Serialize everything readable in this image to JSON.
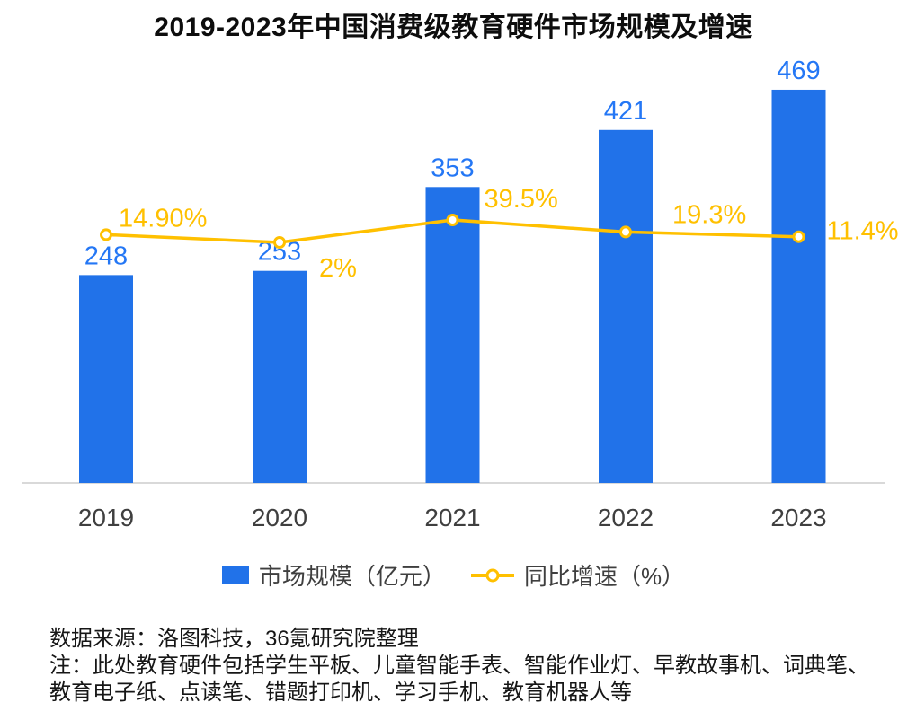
{
  "title": "2019-2023年中国消费级教育硬件市场规模及增速",
  "chart_data": {
    "type": "bar+line combo",
    "title": "2019-2023年中国消费级教育硬件市场规模及增速",
    "categories": [
      "2019",
      "2020",
      "2021",
      "2022",
      "2023"
    ],
    "series": [
      {
        "name": "市场规模（亿元）",
        "type": "bar",
        "values": [
          248,
          253,
          353,
          421,
          469
        ],
        "labels": [
          "248",
          "253",
          "353",
          "421",
          "469"
        ],
        "axis": "left (unlabeled)"
      },
      {
        "name": "同比增速（%）",
        "type": "line",
        "values": [
          14.9,
          2,
          39.5,
          19.3,
          11.4
        ],
        "labels": [
          "14.90%",
          "2%",
          "39.5%",
          "19.3%",
          "11.4%"
        ],
        "axis": "right (unlabeled)"
      }
    ],
    "xlabel": "",
    "ylabel": "",
    "grid": false,
    "legend_position": "bottom",
    "bar_axis_range": [
      0,
      500
    ]
  },
  "legend": {
    "items": [
      {
        "label": "市场规模（亿元）",
        "swatch": "bar"
      },
      {
        "label": "同比增速（%）",
        "swatch": "line-marker"
      }
    ]
  },
  "notes": {
    "source": "数据来源：洛图科技，36氪研究院整理",
    "note_lines": [
      "注：此处教育硬件包括学生平板、儿童智能手表、智能作业灯、早教故事机、词典笔、",
      "教育电子纸、点读笔、错题打印机、学习手机、教育机器人等"
    ]
  },
  "colors": {
    "bar": "#2172E9",
    "bar_label": "#2477F5",
    "line": "#FFC000",
    "axis_label": "#3F3F3F",
    "baseline": "#D9D9D9",
    "title": "#0D0D0D",
    "notes_text": "#161616"
  }
}
